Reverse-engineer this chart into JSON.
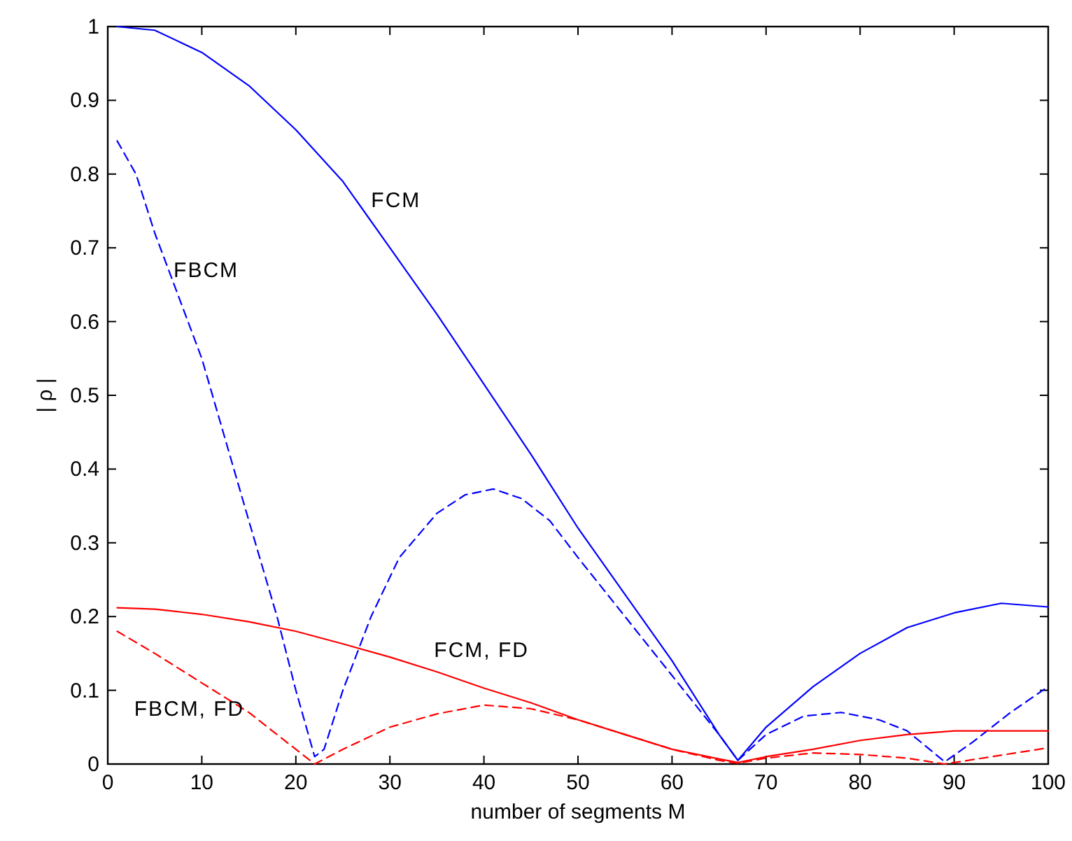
{
  "chart_data": {
    "type": "line",
    "xlabel": "number of segments M",
    "ylabel": "| ρ |",
    "xlim": [
      0,
      100
    ],
    "ylim": [
      0,
      1
    ],
    "xticks": [
      0,
      10,
      20,
      30,
      40,
      50,
      60,
      70,
      80,
      90,
      100
    ],
    "yticks": [
      0,
      0.1,
      0.2,
      0.3,
      0.4,
      0.5,
      0.6,
      0.7,
      0.8,
      0.9,
      1
    ],
    "grid": false,
    "marker": "none",
    "series": [
      {
        "name": "FCM",
        "color": "#0000ff",
        "line_style": "solid",
        "x": [
          1,
          5,
          10,
          15,
          20,
          25,
          30,
          35,
          40,
          45,
          50,
          55,
          60,
          65,
          67,
          70,
          75,
          80,
          85,
          90,
          95,
          100
        ],
        "values": [
          1.0,
          0.995,
          0.965,
          0.92,
          0.86,
          0.79,
          0.7,
          0.61,
          0.515,
          0.42,
          0.32,
          0.23,
          0.14,
          0.04,
          0.005,
          0.05,
          0.105,
          0.15,
          0.185,
          0.205,
          0.218,
          0.213
        ]
      },
      {
        "name": "FBCM",
        "color": "#0000ff",
        "line_style": "dashed",
        "x": [
          1,
          3,
          5,
          10,
          15,
          18,
          20,
          22,
          23,
          25,
          28,
          31,
          35,
          38,
          41,
          44,
          47,
          50,
          55,
          60,
          65,
          67,
          70,
          74,
          78,
          82,
          85,
          89,
          92,
          96,
          100
        ],
        "values": [
          0.845,
          0.8,
          0.72,
          0.55,
          0.33,
          0.2,
          0.1,
          0.01,
          0.02,
          0.1,
          0.2,
          0.28,
          0.34,
          0.365,
          0.373,
          0.36,
          0.33,
          0.28,
          0.2,
          0.12,
          0.04,
          0.005,
          0.04,
          0.065,
          0.07,
          0.06,
          0.045,
          0.003,
          0.03,
          0.07,
          0.105
        ]
      },
      {
        "name": "FCM, FD",
        "color": "#ff0000",
        "line_style": "solid",
        "x": [
          1,
          5,
          10,
          15,
          20,
          25,
          30,
          35,
          40,
          45,
          50,
          55,
          60,
          65,
          67,
          70,
          75,
          80,
          85,
          90,
          100
        ],
        "values": [
          0.212,
          0.21,
          0.203,
          0.193,
          0.18,
          0.163,
          0.145,
          0.125,
          0.103,
          0.083,
          0.06,
          0.04,
          0.02,
          0.007,
          0.002,
          0.01,
          0.02,
          0.032,
          0.04,
          0.045,
          0.045
        ]
      },
      {
        "name": "FBCM, FD",
        "color": "#ff0000",
        "line_style": "dashed",
        "x": [
          1,
          5,
          10,
          15,
          20,
          22,
          25,
          30,
          35,
          40,
          45,
          50,
          55,
          60,
          65,
          67,
          70,
          75,
          80,
          85,
          89,
          95,
          100
        ],
        "values": [
          0.18,
          0.15,
          0.11,
          0.07,
          0.02,
          0.0,
          0.02,
          0.05,
          0.068,
          0.08,
          0.075,
          0.06,
          0.04,
          0.02,
          0.005,
          0.001,
          0.008,
          0.015,
          0.013,
          0.008,
          0.0,
          0.012,
          0.022
        ]
      }
    ]
  }
}
